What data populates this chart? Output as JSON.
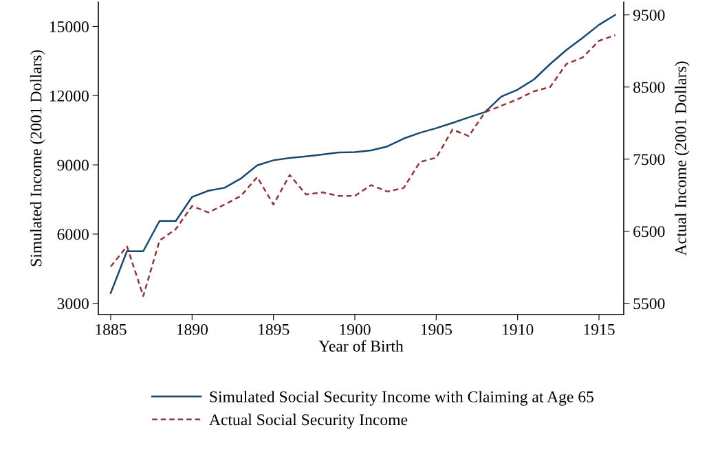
{
  "chart_data": {
    "type": "line",
    "xlabel": "Year of Birth",
    "ylabel": "Simulated Income (2001 Dollars)",
    "y2label": "Actual Income (2001 Dollars)",
    "x": [
      1885,
      1886,
      1887,
      1888,
      1889,
      1890,
      1891,
      1892,
      1893,
      1894,
      1895,
      1896,
      1897,
      1898,
      1899,
      1900,
      1901,
      1902,
      1903,
      1904,
      1905,
      1906,
      1907,
      1908,
      1909,
      1910,
      1911,
      1912,
      1913,
      1914,
      1915,
      1916
    ],
    "series": [
      {
        "name": "Simulated Social Security Income with Claiming at Age 65",
        "color": "#1a476f",
        "line_style": "solid",
        "values": [
          3450,
          5260,
          5260,
          6570,
          6570,
          7610,
          7880,
          8010,
          8410,
          8980,
          9200,
          9300,
          9370,
          9450,
          9540,
          9550,
          9630,
          9800,
          10140,
          10390,
          10590,
          10820,
          11060,
          11290,
          11960,
          12260,
          12700,
          13370,
          13980,
          14510,
          15070,
          15500
        ]
      },
      {
        "name": "Actual Social Security Income",
        "color": "#90353b",
        "line_style": "dashed",
        "axis": "y2",
        "values": [
          6010,
          6290,
          5600,
          6370,
          6530,
          6850,
          6760,
          6870,
          6990,
          7250,
          6870,
          7280,
          7010,
          7040,
          6990,
          6990,
          7140,
          7050,
          7100,
          7460,
          7520,
          7910,
          7820,
          8150,
          8240,
          8330,
          8440,
          8500,
          8820,
          8910,
          9140,
          9220
        ]
      }
    ],
    "xlim": [
      1884.24,
      1916.52
    ],
    "xticks": [
      1885,
      1890,
      1895,
      1900,
      1905,
      1910,
      1915
    ],
    "ylim": [
      2515,
      16056
    ],
    "yticks": [
      3000,
      6000,
      9000,
      12000,
      15000
    ],
    "y2lim": [
      5345,
      9678
    ],
    "y2ticks": [
      5500,
      6500,
      7500,
      8500,
      9500
    ],
    "grid": false,
    "legend": "bottom",
    "marker": "none"
  }
}
